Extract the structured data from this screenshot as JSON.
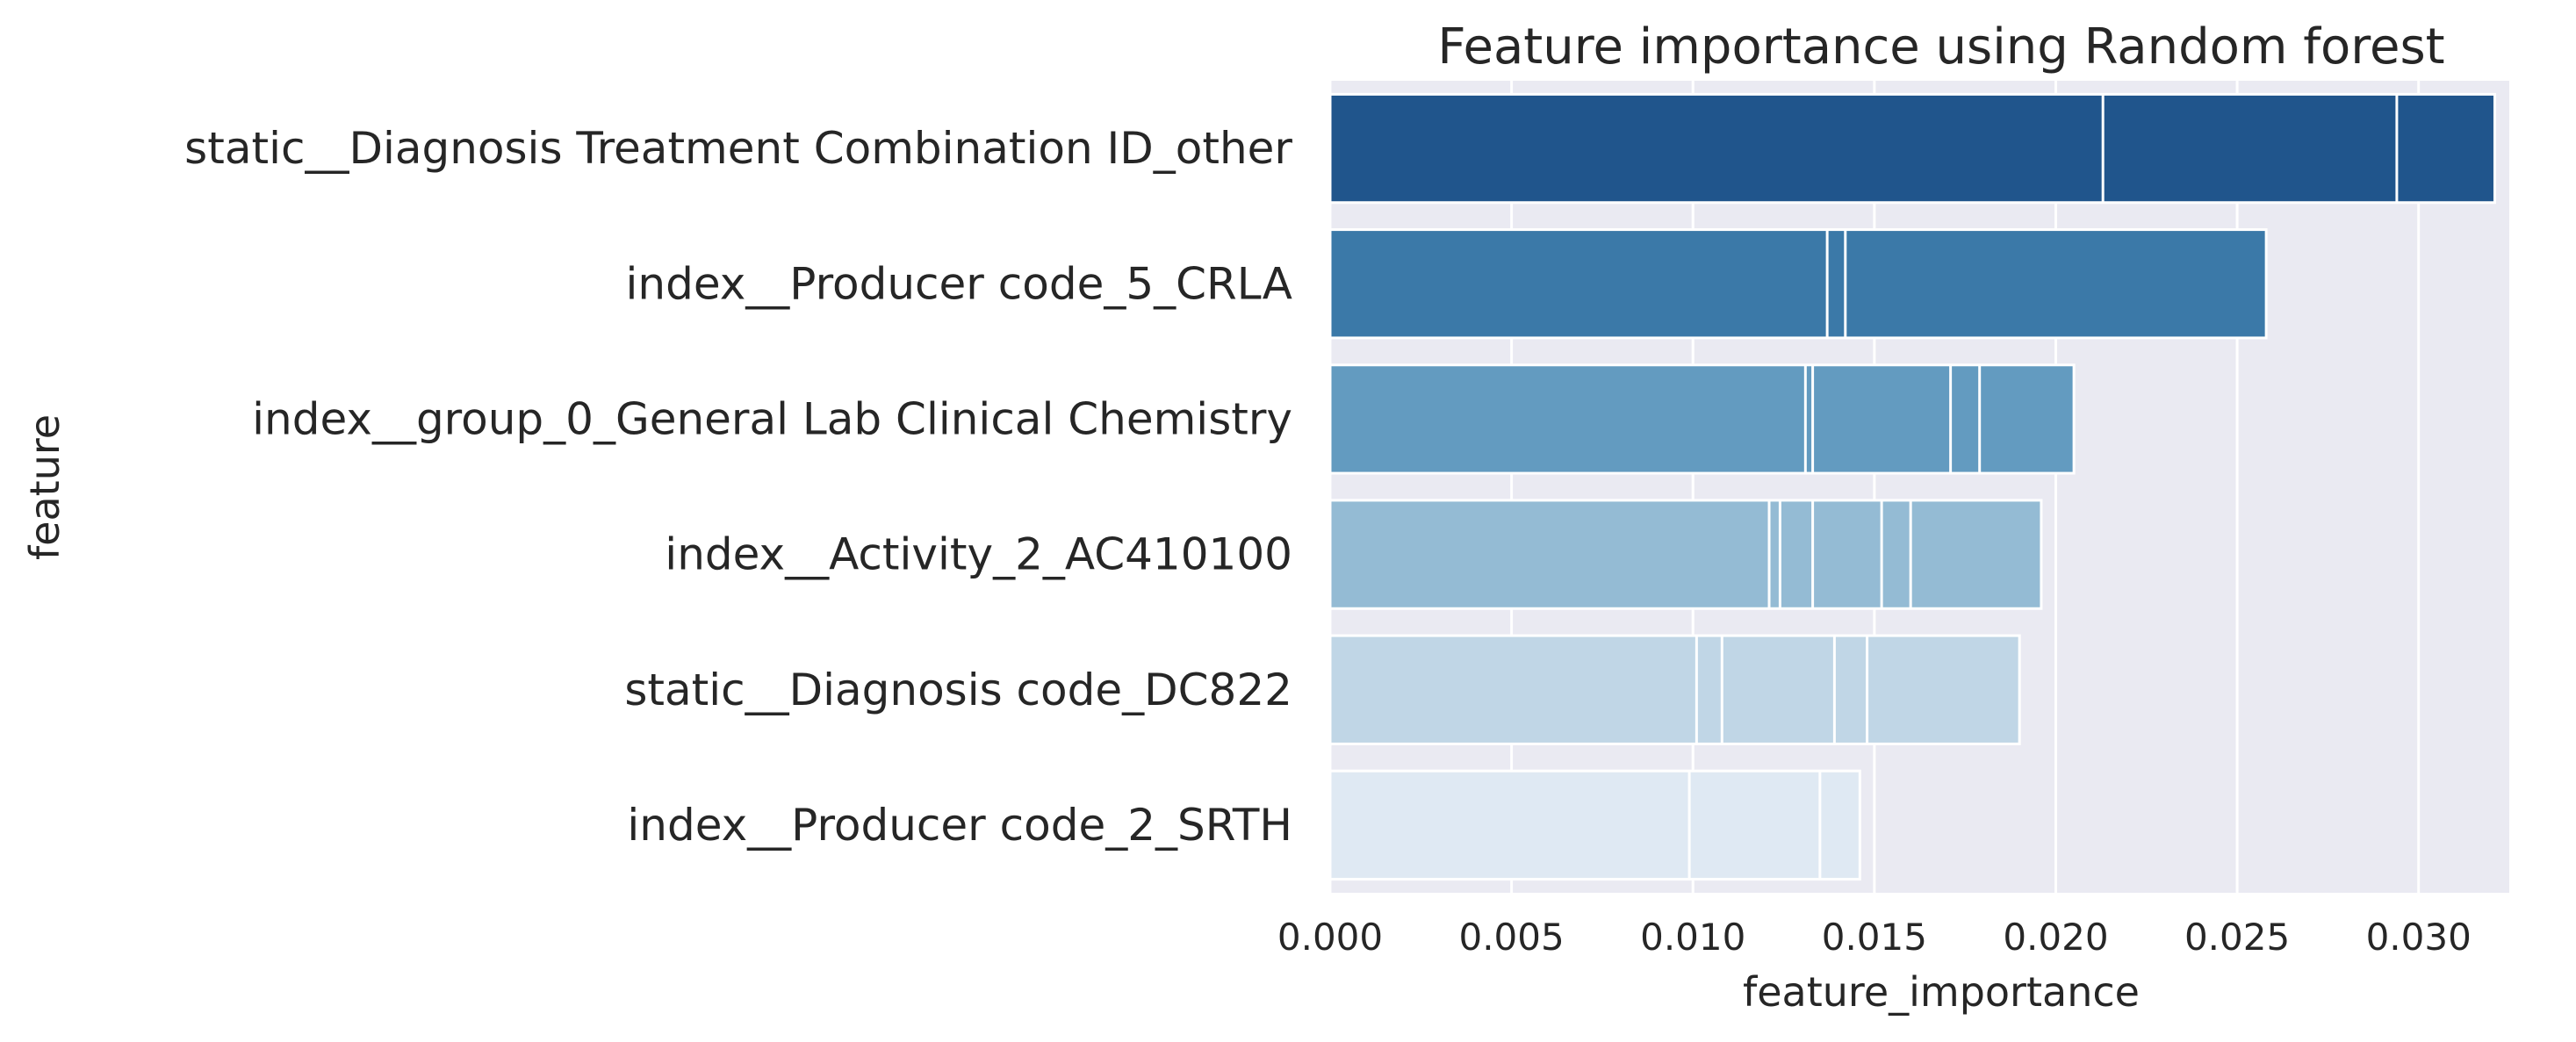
{
  "chart_data": {
    "type": "bar",
    "orientation": "horizontal",
    "title": "Feature importance using Random forest",
    "xlabel": "feature_importance",
    "ylabel": "feature",
    "xlim": [
      0,
      0.0325
    ],
    "xticks": [
      "0.000",
      "0.005",
      "0.010",
      "0.015",
      "0.020",
      "0.025",
      "0.030"
    ],
    "grid": true,
    "categories": [
      "static__Diagnosis Treatment Combination ID_other",
      "index__Producer code_5_CRLA",
      "index__group_0_General Lab Clinical Chemistry",
      "index__Activity_2_AC410100",
      "static__Diagnosis code_DC822",
      "index__Producer code_2_SRTH"
    ],
    "bars": [
      {
        "value": 0.0321,
        "color": "#20558c",
        "segment_edges": [
          0.0213,
          0.0294
        ]
      },
      {
        "value": 0.0258,
        "color": "#3b79a8",
        "segment_edges": [
          0.0137,
          0.0142
        ]
      },
      {
        "value": 0.0205,
        "color": "#639bc0",
        "segment_edges": [
          0.0131,
          0.0133,
          0.0171,
          0.0179
        ]
      },
      {
        "value": 0.0196,
        "color": "#94bbd4",
        "segment_edges": [
          0.0121,
          0.0124,
          0.0133,
          0.0152,
          0.016
        ]
      },
      {
        "value": 0.019,
        "color": "#c0d6e6",
        "segment_edges": [
          0.0101,
          0.0108,
          0.0139,
          0.0148
        ]
      },
      {
        "value": 0.0146,
        "color": "#dfe9f3",
        "segment_edges": [
          0.0099,
          0.0135
        ]
      }
    ]
  }
}
